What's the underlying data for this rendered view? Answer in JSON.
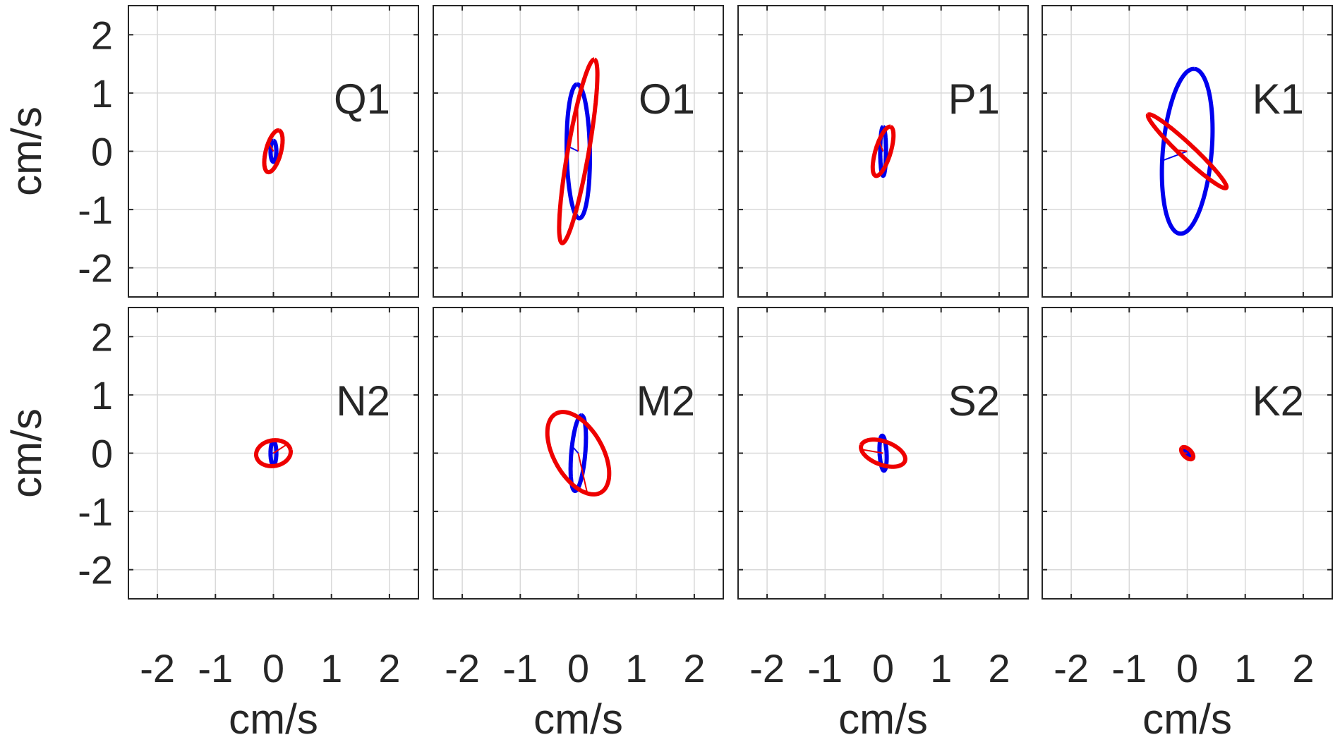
{
  "chart_data": {
    "type": "scatter",
    "layout": {
      "rows": 2,
      "cols": 4
    },
    "xlabel": "cm/s",
    "ylabel": "cm/s",
    "xlim": [
      -2.5,
      2.5
    ],
    "ylim": [
      -2.5,
      2.5
    ],
    "ticks": [
      -2,
      -1,
      0,
      1,
      2
    ],
    "tick_labels": [
      "-2",
      "-1",
      "0",
      "1",
      "2"
    ],
    "grid": true,
    "series_colors": {
      "blue": "#0000ee",
      "red": "#ee0000"
    },
    "panels": [
      {
        "label": "Q1",
        "ellipses": [
          {
            "color": "blue",
            "semi_major": 0.18,
            "semi_minor": 0.05,
            "orientation_deg": 90,
            "phase_deg": 90
          },
          {
            "color": "red",
            "semi_major": 0.37,
            "semi_minor": 0.13,
            "orientation_deg": 75,
            "phase_deg": 70
          }
        ]
      },
      {
        "label": "O1",
        "ellipses": [
          {
            "color": "blue",
            "semi_major": 1.15,
            "semi_minor": 0.2,
            "orientation_deg": 91,
            "phase_deg": 85
          },
          {
            "color": "red",
            "semi_major": 1.6,
            "semi_minor": 0.18,
            "orientation_deg": 80,
            "phase_deg": 60
          }
        ]
      },
      {
        "label": "P1",
        "ellipses": [
          {
            "color": "blue",
            "semi_major": 0.42,
            "semi_minor": 0.05,
            "orientation_deg": 90,
            "phase_deg": 90
          },
          {
            "color": "red",
            "semi_major": 0.44,
            "semi_minor": 0.13,
            "orientation_deg": 73,
            "phase_deg": 70
          }
        ]
      },
      {
        "label": "K1",
        "ellipses": [
          {
            "color": "blue",
            "semi_major": 1.42,
            "semi_minor": 0.42,
            "orientation_deg": 85,
            "phase_deg": 98
          },
          {
            "color": "red",
            "semi_major": 0.92,
            "semi_minor": 0.12,
            "orientation_deg": 137,
            "phase_deg": 80
          }
        ]
      },
      {
        "label": "N2",
        "ellipses": [
          {
            "color": "blue",
            "semi_major": 0.2,
            "semi_minor": 0.05,
            "orientation_deg": 90,
            "phase_deg": 90
          },
          {
            "color": "red",
            "semi_major": 0.3,
            "semi_minor": 0.22,
            "orientation_deg": 10,
            "phase_deg": 30
          }
        ]
      },
      {
        "label": "M2",
        "ellipses": [
          {
            "color": "blue",
            "semi_major": 0.65,
            "semi_minor": 0.12,
            "orientation_deg": 85,
            "phase_deg": 80
          },
          {
            "color": "red",
            "semi_major": 0.78,
            "semi_minor": 0.42,
            "orientation_deg": 120,
            "phase_deg": 150
          }
        ]
      },
      {
        "label": "S2",
        "ellipses": [
          {
            "color": "blue",
            "semi_major": 0.3,
            "semi_minor": 0.06,
            "orientation_deg": 93,
            "phase_deg": 90
          },
          {
            "color": "red",
            "semi_major": 0.4,
            "semi_minor": 0.2,
            "orientation_deg": 160,
            "phase_deg": 20
          }
        ]
      },
      {
        "label": "K2",
        "ellipses": [
          {
            "color": "blue",
            "semi_major": 0.07,
            "semi_minor": 0.03,
            "orientation_deg": 130,
            "phase_deg": 90
          },
          {
            "color": "red",
            "semi_major": 0.13,
            "semi_minor": 0.07,
            "orientation_deg": 135,
            "phase_deg": 60
          }
        ]
      }
    ]
  }
}
